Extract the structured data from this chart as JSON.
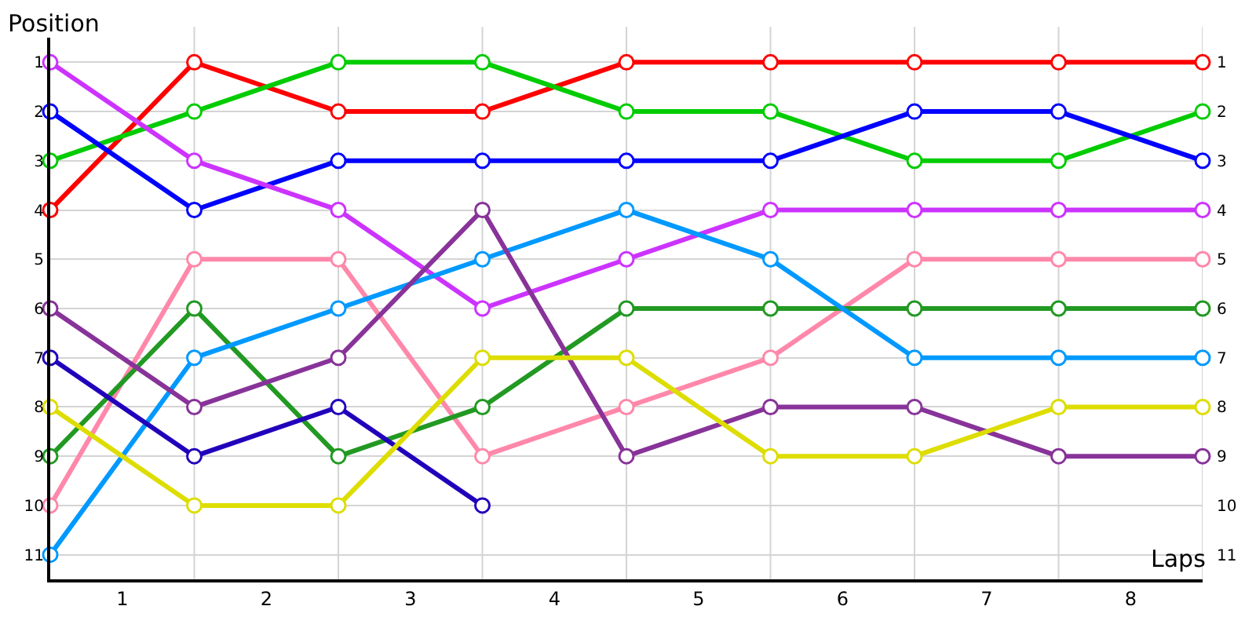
{
  "chart_data": {
    "type": "line",
    "xlabel": "Laps",
    "ylabel": "Position",
    "x": [
      0,
      1,
      2,
      3,
      4,
      5,
      6,
      7,
      8
    ],
    "xlim": [
      0,
      8
    ],
    "xticks": [
      {
        "value": 0.5,
        "label": "1"
      },
      {
        "value": 1.5,
        "label": "2"
      },
      {
        "value": 2.5,
        "label": "3"
      },
      {
        "value": 3.5,
        "label": "4"
      },
      {
        "value": 4.5,
        "label": "5"
      },
      {
        "value": 5.5,
        "label": "6"
      },
      {
        "value": 6.5,
        "label": "7"
      },
      {
        "value": 7.5,
        "label": "8"
      },
      {
        "value": 1,
        "label": null
      },
      {
        "value": 2,
        "label": null
      },
      {
        "value": 3,
        "label": null
      },
      {
        "value": 4,
        "label": null
      },
      {
        "value": 5,
        "label": null
      },
      {
        "value": 6,
        "label": null
      },
      {
        "value": 7,
        "label": null
      },
      {
        "value": 8,
        "label": null
      }
    ],
    "ylim": [
      11.5,
      0.5
    ],
    "yticks": [
      1,
      2,
      3,
      4,
      5,
      6,
      7,
      8,
      9,
      10,
      11
    ],
    "y2lim": [
      11.5,
      0.5
    ],
    "y2ticks": [
      1,
      2,
      3,
      4,
      5,
      6,
      7,
      8,
      9,
      10,
      11
    ],
    "grid": true,
    "marker": "circle",
    "line_style": "solid",
    "series": [
      {
        "color": "#ff0000",
        "values": [
          4,
          1,
          2,
          2,
          1,
          1,
          1,
          1,
          1
        ]
      },
      {
        "color": "#00cc00",
        "values": [
          3,
          2,
          1,
          1,
          2,
          2,
          3,
          3,
          2
        ]
      },
      {
        "color": "#0000ff",
        "values": [
          2,
          4,
          3,
          3,
          3,
          3,
          2,
          2,
          3
        ]
      },
      {
        "color": "#cc33ff",
        "values": [
          1,
          3,
          4,
          6,
          5,
          4,
          4,
          4,
          4
        ]
      },
      {
        "color": "#ff88aa",
        "values": [
          10,
          5,
          5,
          9,
          8,
          7,
          5,
          5,
          5
        ]
      },
      {
        "color": "#229922",
        "values": [
          9,
          6,
          9,
          8,
          6,
          6,
          6,
          6,
          6
        ]
      },
      {
        "color": "#0099ff",
        "values": [
          11,
          7,
          6,
          5,
          4,
          5,
          7,
          7,
          7
        ]
      },
      {
        "color": "#883399",
        "values": [
          6,
          8,
          7,
          4,
          9,
          8,
          8,
          9,
          9
        ]
      },
      {
        "color": "#2200bb",
        "values": [
          7,
          9,
          8,
          10,
          null,
          null,
          null,
          null,
          null
        ]
      },
      {
        "color": "#dddd00",
        "values": [
          8,
          10,
          10,
          7,
          7,
          9,
          9,
          8,
          8
        ]
      }
    ]
  }
}
